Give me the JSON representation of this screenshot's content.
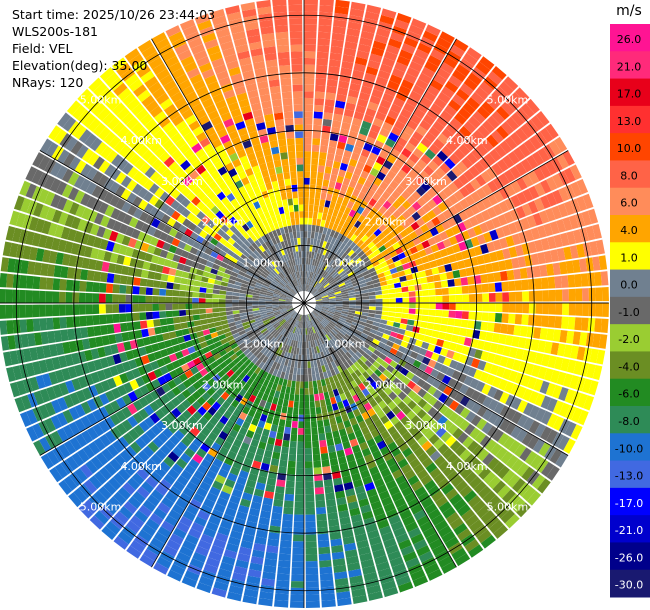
{
  "info": {
    "start_time": "Start time: 2025/10/26 23:44:03",
    "station": "WLS200s-181",
    "field": "Field: VEL",
    "elevation": "Elevation(deg): 35.00",
    "nrays": "NRays: 120"
  },
  "chart_data": {
    "type": "heatmap",
    "projection": "polar-ppi",
    "field": "VEL",
    "elevation_deg": 35.0,
    "n_rays": 120,
    "ring_labels_km": [
      "1.00km",
      "2.00km",
      "3.00km",
      "4.00km",
      "5.00km"
    ],
    "rings_km": [
      1,
      2,
      3,
      4,
      5
    ],
    "max_range_km": 5.3,
    "colorbar": {
      "unit": "m/s",
      "ticks": [
        "26.0",
        "21.0",
        "17.0",
        "13.0",
        "10.0",
        "8.0",
        "6.0",
        "4.0",
        "1.0",
        "0.0",
        "-1.0",
        "-2.0",
        "-4.0",
        "-6.0",
        "-8.0",
        "-10.0",
        "-13.0",
        "-17.0",
        "-21.0",
        "-26.0",
        "-30.0"
      ],
      "bins": [
        {
          "lo": 26,
          "hi": 30,
          "color": "#ff1493"
        },
        {
          "lo": 21,
          "hi": 26,
          "color": "#ff2a7a"
        },
        {
          "lo": 17,
          "hi": 21,
          "color": "#e8001a"
        },
        {
          "lo": 13,
          "hi": 17,
          "color": "#ff3030"
        },
        {
          "lo": 10,
          "hi": 13,
          "color": "#ff4500"
        },
        {
          "lo": 8,
          "hi": 10,
          "color": "#ff6347"
        },
        {
          "lo": 6,
          "hi": 8,
          "color": "#ff8c5a"
        },
        {
          "lo": 4,
          "hi": 6,
          "color": "#ffa500"
        },
        {
          "lo": 1,
          "hi": 4,
          "color": "#ffff00"
        },
        {
          "lo": 0,
          "hi": 1,
          "color": "#708090"
        },
        {
          "lo": -1,
          "hi": 0,
          "color": "#696969"
        },
        {
          "lo": -2,
          "hi": -1,
          "color": "#9acd32"
        },
        {
          "lo": -4,
          "hi": -2,
          "color": "#6b8e23"
        },
        {
          "lo": -6,
          "hi": -4,
          "color": "#228b22"
        },
        {
          "lo": -8,
          "hi": -6,
          "color": "#2e8b57"
        },
        {
          "lo": -10,
          "hi": -8,
          "color": "#1e73d2"
        },
        {
          "lo": -13,
          "hi": -10,
          "color": "#4169e1"
        },
        {
          "lo": -17,
          "hi": -13,
          "color": "#0000ff"
        },
        {
          "lo": -21,
          "hi": -17,
          "color": "#0000cd"
        },
        {
          "lo": -26,
          "hi": -21,
          "color": "#00008b"
        },
        {
          "lo": -30,
          "hi": -26,
          "color": "#191970"
        }
      ]
    },
    "velocity_pattern": {
      "description_sectors": [
        {
          "az_from": 300,
          "az_to": 60,
          "outer_value": 9
        },
        {
          "az_from": 60,
          "az_to": 120,
          "outer_value": 5
        },
        {
          "az_from": 120,
          "az_to": 180,
          "outer_value": -3
        },
        {
          "az_from": 180,
          "az_to": 240,
          "outer_value": -9
        },
        {
          "az_from": 240,
          "az_to": 300,
          "outer_value": -6
        }
      ],
      "max_speed": 10,
      "direction_az": 30
    }
  }
}
